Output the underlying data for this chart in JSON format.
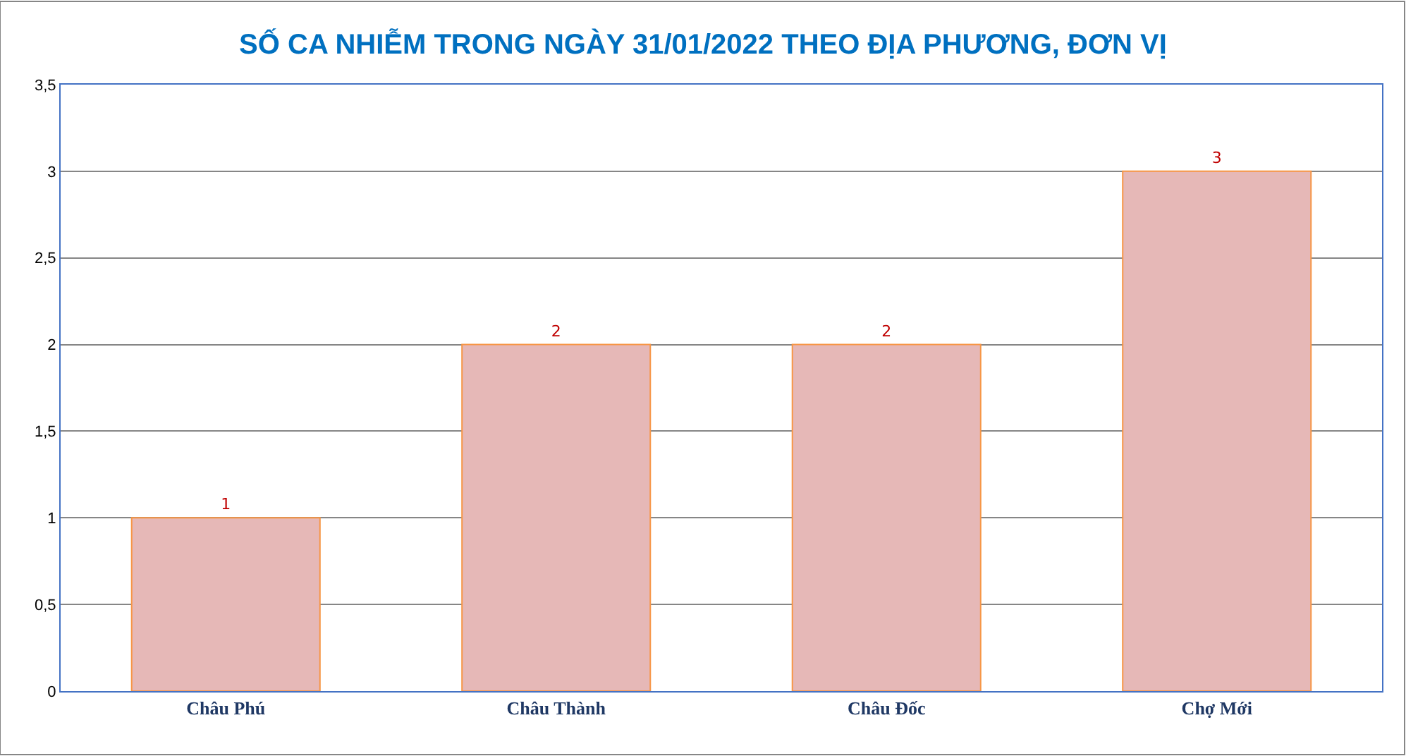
{
  "chart_data": {
    "type": "bar",
    "title": "SỐ CA NHIỄM TRONG NGÀY 31/01/2022 THEO ĐỊA PHƯƠNG, ĐƠN VỊ",
    "categories": [
      "Châu Phú",
      "Châu Thành",
      "Châu Đốc",
      "Chợ Mới"
    ],
    "values": [
      1,
      2,
      2,
      3
    ],
    "color": "#e6b8b7",
    "data_labels": true,
    "ylim": [
      0,
      3.5
    ],
    "yticks": [
      0,
      {
        "value": 0.5,
        "label": "0,5"
      },
      1,
      {
        "value": 1.5,
        "label": "1,5"
      },
      2,
      {
        "value": 2.5,
        "label": "2,5"
      },
      3,
      {
        "value": 3.5,
        "label": "3,5"
      }
    ],
    "grid": "y"
  }
}
